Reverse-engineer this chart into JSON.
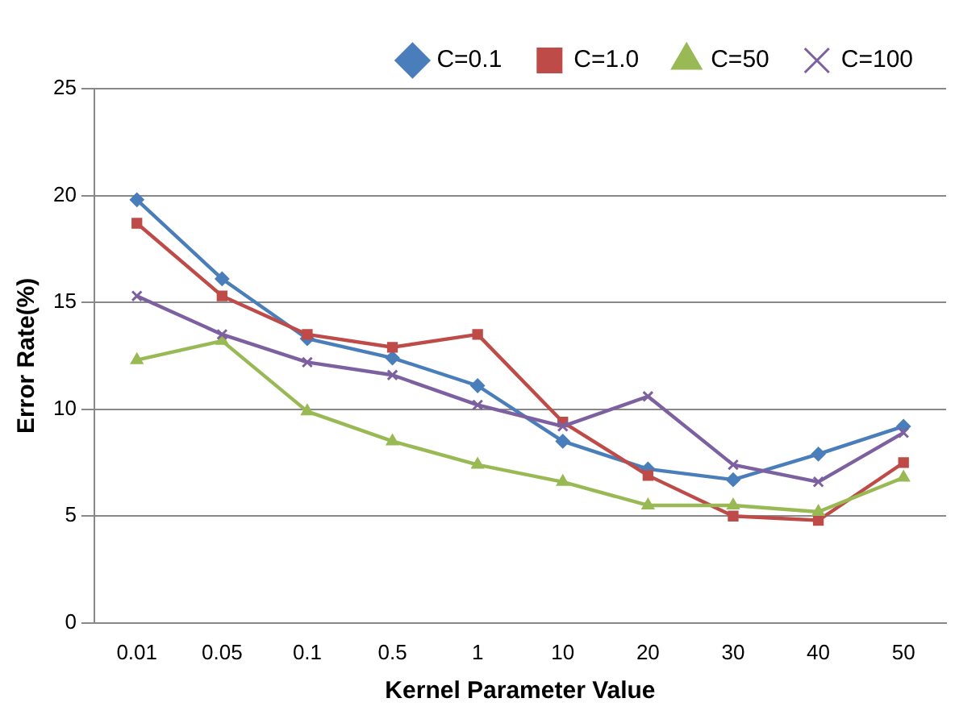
{
  "chart_data": {
    "type": "line",
    "xlabel": "Kernel Parameter Value",
    "ylabel": "Error Rate(%)",
    "categories": [
      "0.01",
      "0.05",
      "0.1",
      "0.5",
      "1",
      "10",
      "20",
      "30",
      "40",
      "50"
    ],
    "series": [
      {
        "name": "C=0.1",
        "color": "#4a7ebb",
        "marker": "diamond",
        "values": [
          19.8,
          16.1,
          13.3,
          12.4,
          11.1,
          8.5,
          7.2,
          6.7,
          7.9,
          9.2
        ]
      },
      {
        "name": "C=1.0",
        "color": "#be4b48",
        "marker": "square",
        "values": [
          18.7,
          15.3,
          13.5,
          12.9,
          13.5,
          9.4,
          6.9,
          5.0,
          4.8,
          7.5
        ]
      },
      {
        "name": "C=50",
        "color": "#98b954",
        "marker": "triangle",
        "values": [
          12.3,
          13.2,
          9.9,
          8.5,
          7.4,
          6.6,
          5.5,
          5.5,
          5.2,
          6.8
        ]
      },
      {
        "name": "C=100",
        "color": "#7d60a0",
        "marker": "cross",
        "values": [
          15.3,
          13.5,
          12.2,
          11.6,
          10.2,
          9.2,
          10.6,
          7.4,
          6.6,
          8.9
        ]
      }
    ],
    "ylim": [
      0,
      25
    ],
    "yticks": [
      0,
      5,
      10,
      15,
      20,
      25
    ],
    "grid": "y",
    "legend": "top right",
    "line_style": "solid"
  }
}
